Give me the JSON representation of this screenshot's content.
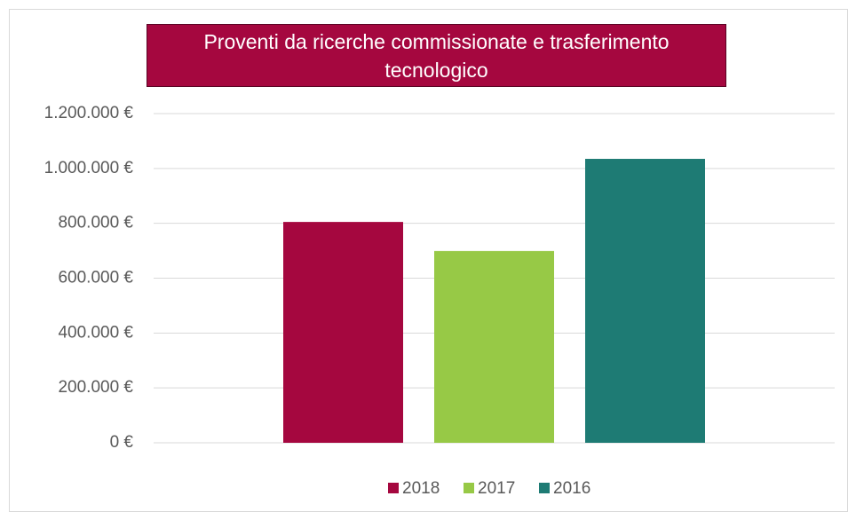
{
  "chart_data": {
    "type": "bar",
    "title": "Proventi da ricerche commissionate e trasferimento tecnologico",
    "categories": [
      null
    ],
    "series": [
      {
        "name": "2018",
        "color": "#a5073f",
        "values": [
          805000
        ]
      },
      {
        "name": "2017",
        "color": "#97c946",
        "values": [
          699000
        ]
      },
      {
        "name": "2016",
        "color": "#1e7b74",
        "values": [
          1035000
        ]
      }
    ],
    "ylim": [
      0,
      1200000
    ],
    "yticks": [
      {
        "value": 0,
        "label": "0 €"
      },
      {
        "value": 200000,
        "label": "200.000 €"
      },
      {
        "value": 400000,
        "label": "400.000 €"
      },
      {
        "value": 600000,
        "label": "600.000 €"
      },
      {
        "value": 800000,
        "label": "800.000 €"
      },
      {
        "value": 1000000,
        "label": "1.000.000 €"
      },
      {
        "value": 1200000,
        "label": "1.200.000 €"
      }
    ],
    "grid": true,
    "legend": "bottom"
  }
}
